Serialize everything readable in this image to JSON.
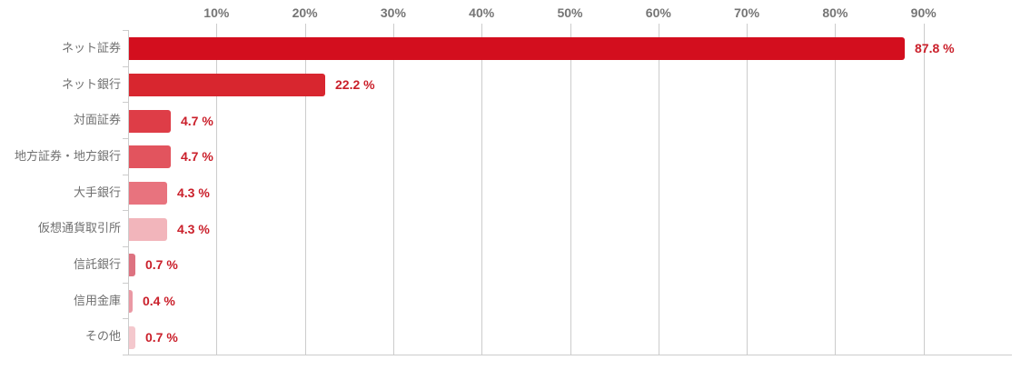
{
  "chart_data": {
    "type": "bar",
    "orientation": "horizontal",
    "title": "",
    "categories": [
      "ネット証券",
      "ネット銀行",
      "対面証券",
      "地方証券・地方銀行",
      "大手銀行",
      "仮想通貨取引所",
      "信託銀行",
      "信用金庫",
      "その他"
    ],
    "values": [
      87.8,
      22.2,
      4.7,
      4.7,
      4.3,
      4.3,
      0.7,
      0.4,
      0.7
    ],
    "value_labels": [
      "87.8 %",
      "22.2 %",
      "4.7 %",
      "4.7 %",
      "4.3 %",
      "4.3 %",
      "0.7 %",
      "0.4 %",
      "0.7 %"
    ],
    "bar_colors": [
      "#d30e1e",
      "#d8262f",
      "#de3d47",
      "#e2545e",
      "#e8737e",
      "#f2b5bb",
      "#dd7280",
      "#ea99a4",
      "#f4c8cd"
    ],
    "axis": {
      "position": "top",
      "min": 0,
      "max": 100,
      "ticks": [
        10,
        20,
        30,
        40,
        50,
        60,
        70,
        80,
        90
      ],
      "tick_labels": [
        "10%",
        "20%",
        "30%",
        "40%",
        "50%",
        "60%",
        "70%",
        "80%",
        "90%"
      ]
    },
    "grid": true,
    "legend": false,
    "colors": {
      "background": "#ffffff",
      "gridline": "#cccccc",
      "axis_label": "#757575",
      "category_label": "#6f6f6f",
      "value_label": "#ca1f2a"
    }
  }
}
